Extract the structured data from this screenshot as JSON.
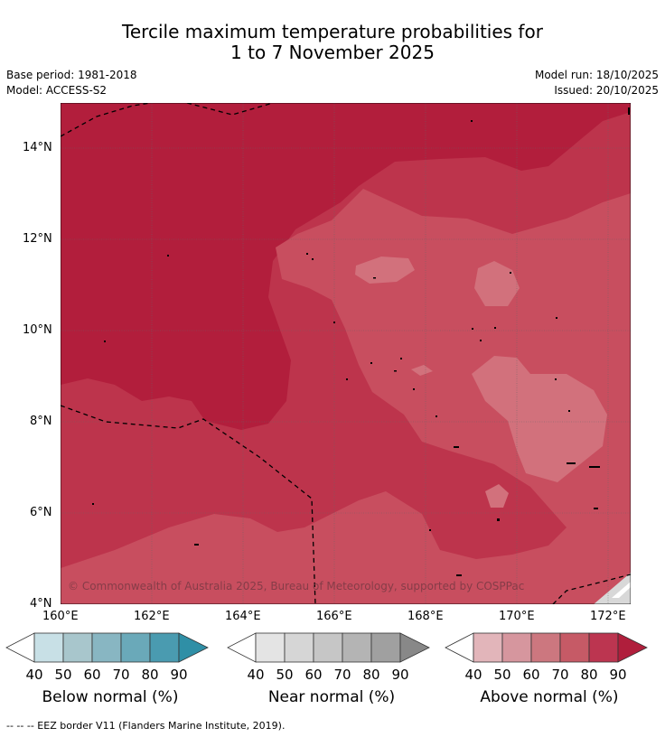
{
  "title": {
    "line1": "Tercile maximum temperature probabilities for",
    "line2": "1 to 7 November 2025"
  },
  "meta": {
    "base_period": "Base period: 1981-2018",
    "model": "Model: ACCESS-S2",
    "model_run": "Model run: 18/10/2025",
    "issued": "Issued: 20/10/2025"
  },
  "map": {
    "copyright": "© Commonwealth of Australia 2025, Bureau of Meteorology, supported by COSPPac",
    "lat_labels": [
      "14°N",
      "12°N",
      "10°N",
      "8°N",
      "6°N",
      "4°N"
    ],
    "lon_labels": [
      "160°E",
      "162°E",
      "164°E",
      "166°E",
      "168°E",
      "170°E",
      "172°E"
    ],
    "fill_colors": {
      "above_90": "#b21e3c",
      "above_80": "#bd344c",
      "above_70": "#c84e5f",
      "above_60": "#d2717c",
      "near": "#d8d8d8",
      "land": "#ffffff"
    }
  },
  "colorbars": [
    {
      "title": "Below normal (%)",
      "ticks": [
        "40",
        "50",
        "60",
        "70",
        "80",
        "90"
      ],
      "colors": [
        "#ffffff",
        "#c8e0e6",
        "#a8c6cc",
        "#88b6c2",
        "#6aa9b9",
        "#4a9bb0",
        "#2f8fa6"
      ]
    },
    {
      "title": "Near normal (%)",
      "ticks": [
        "40",
        "50",
        "60",
        "70",
        "80",
        "90"
      ],
      "colors": [
        "#ffffff",
        "#e4e4e4",
        "#d6d6d6",
        "#c6c6c6",
        "#b4b4b4",
        "#a0a0a0",
        "#888888"
      ]
    },
    {
      "title": "Above normal (%)",
      "ticks": [
        "40",
        "50",
        "60",
        "70",
        "80",
        "90"
      ],
      "colors": [
        "#ffffff",
        "#e2b5ba",
        "#d6969e",
        "#cc777f",
        "#c65a66",
        "#bc3550",
        "#b01e3c"
      ]
    }
  ],
  "footer": "-- -- -- EEZ border V11 (Flanders Marine Institute, 2019)."
}
